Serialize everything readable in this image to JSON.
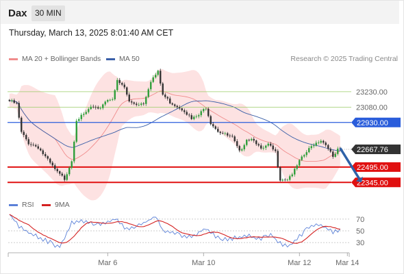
{
  "header": {
    "symbol": "Dax",
    "interval": "30 MIN"
  },
  "timestamp": "Thursday, March 13, 2025 8:01:40 AM CET",
  "credit": "Research © 2025 Trading Central",
  "colors": {
    "bollinger": "#f08c8c",
    "bollinger_fill": "#fde2e2",
    "ma50": "#3a5fa8",
    "resistance": "#99cc66",
    "pivot": "#2a5ddb",
    "support": "#e01010",
    "last_price": "#333333",
    "arrow": "#2f62a8",
    "rsi": "#5a80d8",
    "rsi_ma": "#d42020",
    "candle_up": "#2e9e3a",
    "candle_down": "#333333"
  },
  "chart_data": [
    {
      "type": "line",
      "panel": "price",
      "legend": [
        {
          "name": "MA 20 + Bollinger Bands",
          "color": "#f08c8c"
        },
        {
          "name": "MA 50",
          "color": "#3a5fa8"
        }
      ],
      "x_ticks": [
        {
          "label": "Mar 6",
          "bar": 41
        },
        {
          "label": "Mar 10",
          "bar": 81
        },
        {
          "label": "Mar 12",
          "bar": 121
        },
        {
          "label": "Mar 14",
          "bar": 141
        }
      ],
      "ylim": [
        22280,
        23450
      ],
      "levels": [
        {
          "name": "resistance_2",
          "value": 23230,
          "label": "23230.00",
          "style": "resistance"
        },
        {
          "name": "resistance_1",
          "value": 23080,
          "label": "23080.00",
          "style": "resistance"
        },
        {
          "name": "pivot",
          "value": 22930,
          "label": "22930.00",
          "style": "pivot"
        },
        {
          "name": "support_1",
          "value": 22495,
          "label": "22495.00",
          "style": "support"
        },
        {
          "name": "support_2",
          "value": 22345,
          "label": "22345.00",
          "style": "support"
        }
      ],
      "last_price": {
        "value": 22667.76,
        "label": "22667.76"
      },
      "arrow": {
        "from": [
          138,
          22680
        ],
        "to": [
          146,
          22380
        ]
      },
      "anchors": [
        [
          0,
          23140
        ],
        [
          3,
          23110
        ],
        [
          5,
          22830
        ],
        [
          8,
          22730
        ],
        [
          12,
          22690
        ],
        [
          16,
          22560
        ],
        [
          20,
          22440
        ],
        [
          23,
          22380
        ],
        [
          26,
          22560
        ],
        [
          28,
          22960
        ],
        [
          31,
          23000
        ],
        [
          34,
          23080
        ],
        [
          37,
          23050
        ],
        [
          40,
          23140
        ],
        [
          43,
          23170
        ],
        [
          45,
          23330
        ],
        [
          48,
          23270
        ],
        [
          50,
          23130
        ],
        [
          53,
          23110
        ],
        [
          56,
          23120
        ],
        [
          59,
          23340
        ],
        [
          62,
          23420
        ],
        [
          64,
          23200
        ],
        [
          67,
          23130
        ],
        [
          70,
          23090
        ],
        [
          73,
          23050
        ],
        [
          76,
          22960
        ],
        [
          79,
          23000
        ],
        [
          82,
          23080
        ],
        [
          84,
          22930
        ],
        [
          87,
          22850
        ],
        [
          90,
          22810
        ],
        [
          93,
          22780
        ],
        [
          96,
          22640
        ],
        [
          99,
          22770
        ],
        [
          102,
          22770
        ],
        [
          105,
          22660
        ],
        [
          108,
          22710
        ],
        [
          111,
          22640
        ],
        [
          113,
          22380
        ],
        [
          116,
          22380
        ],
        [
          119,
          22460
        ],
        [
          121,
          22550
        ],
        [
          124,
          22640
        ],
        [
          127,
          22720
        ],
        [
          130,
          22760
        ],
        [
          133,
          22690
        ],
        [
          135,
          22580
        ],
        [
          137,
          22660
        ],
        [
          138,
          22668
        ]
      ]
    },
    {
      "type": "line",
      "panel": "rsi",
      "series": [
        {
          "name": "RSI",
          "color": "#5a80d8"
        },
        {
          "name": "9MA",
          "color": "#d42020"
        }
      ],
      "ylim": [
        15,
        85
      ],
      "y_ticks": [
        70,
        50,
        30
      ],
      "anchors": [
        [
          0,
          78
        ],
        [
          4,
          58
        ],
        [
          8,
          48
        ],
        [
          12,
          40
        ],
        [
          17,
          30
        ],
        [
          21,
          22
        ],
        [
          24,
          46
        ],
        [
          26,
          64
        ],
        [
          30,
          68
        ],
        [
          35,
          62
        ],
        [
          40,
          64
        ],
        [
          44,
          70
        ],
        [
          49,
          52
        ],
        [
          53,
          56
        ],
        [
          57,
          66
        ],
        [
          61,
          74
        ],
        [
          64,
          50
        ],
        [
          69,
          46
        ],
        [
          73,
          40
        ],
        [
          78,
          44
        ],
        [
          82,
          54
        ],
        [
          86,
          40
        ],
        [
          90,
          36
        ],
        [
          94,
          38
        ],
        [
          99,
          42
        ],
        [
          104,
          36
        ],
        [
          109,
          44
        ],
        [
          113,
          28
        ],
        [
          117,
          24
        ],
        [
          121,
          40
        ],
        [
          125,
          58
        ],
        [
          129,
          62
        ],
        [
          133,
          52
        ],
        [
          135,
          48
        ],
        [
          138,
          52
        ]
      ]
    }
  ]
}
